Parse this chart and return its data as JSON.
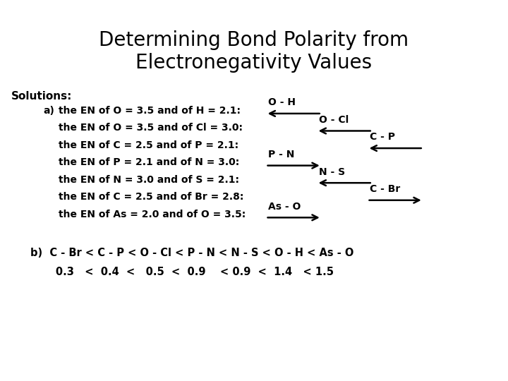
{
  "title_line1": "Determining Bond Polarity from",
  "title_line2": "Electronegativity Values",
  "title_fontsize": 20,
  "title_color": "#000000",
  "bg_color": "#ffffff",
  "green_bar_color": "#00CC00",
  "solutions_label": "Solutions:",
  "lines_a": [
    "the EN of O = 3.5 and of H = 2.1:",
    "the EN of O = 3.5 and of Cl = 3.0:",
    "the EN of C = 2.5 and of P = 2.1:",
    "the EN of P = 2.1 and of N = 3.0:",
    "the EN of N = 3.0 and of S = 2.1:",
    "the EN of C = 2.5 and of Br = 2.8:",
    "the EN of As = 2.0 and of O = 3.5:"
  ],
  "bonds": [
    "O - H",
    "O - Cl",
    "C - P",
    "P - N",
    "N - S",
    "C - Br",
    "As - O"
  ],
  "arrows_right": [
    false,
    false,
    false,
    true,
    false,
    true,
    true
  ],
  "bond_cols": [
    0,
    1,
    2,
    0,
    1,
    2,
    0
  ],
  "line_b1": "b)  C - Br < C - P < O - Cl < P - N < N - S < O - H < As - O",
  "line_b2": "       0.3   <  0.4  <   0.5  <  0.9    < 0.9  <  1.4   < 1.5",
  "font_size_body": 10,
  "font_size_title": 20,
  "font_size_solutions": 11
}
